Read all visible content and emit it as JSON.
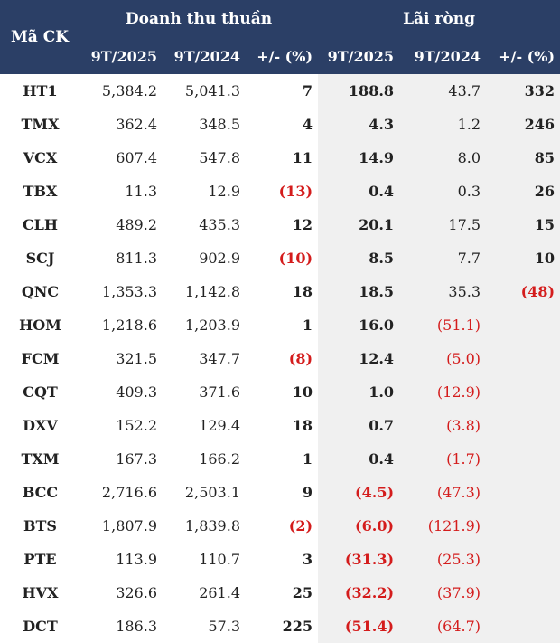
{
  "colors": {
    "header_bg": "#2b3f66",
    "header_text": "#ffffff",
    "negative": "#d41c1c",
    "shade": "#f0f0f0"
  },
  "header": {
    "ticker": "Mã CK",
    "revenue_group": "Doanh thu thuần",
    "profit_group": "Lãi ròng",
    "rev_2025": "9T/2025",
    "rev_2024": "9T/2024",
    "rev_change": "+/- (%)",
    "np_2025": "9T/2025",
    "np_2024": "9T/2024",
    "np_change": "+/- (%)"
  },
  "rows": [
    {
      "ticker": "HT1",
      "rev_2025": "5,384.2",
      "rev_2024": "5,041.3",
      "rev_change": "7",
      "np_2025": "188.8",
      "np_2024": "43.7",
      "np_change": "332"
    },
    {
      "ticker": "TMX",
      "rev_2025": "362.4",
      "rev_2024": "348.5",
      "rev_change": "4",
      "np_2025": "4.3",
      "np_2024": "1.2",
      "np_change": "246"
    },
    {
      "ticker": "VCX",
      "rev_2025": "607.4",
      "rev_2024": "547.8",
      "rev_change": "11",
      "np_2025": "14.9",
      "np_2024": "8.0",
      "np_change": "85"
    },
    {
      "ticker": "TBX",
      "rev_2025": "11.3",
      "rev_2024": "12.9",
      "rev_change": "(13)",
      "np_2025": "0.4",
      "np_2024": "0.3",
      "np_change": "26"
    },
    {
      "ticker": "CLH",
      "rev_2025": "489.2",
      "rev_2024": "435.3",
      "rev_change": "12",
      "np_2025": "20.1",
      "np_2024": "17.5",
      "np_change": "15"
    },
    {
      "ticker": "SCJ",
      "rev_2025": "811.3",
      "rev_2024": "902.9",
      "rev_change": "(10)",
      "np_2025": "8.5",
      "np_2024": "7.7",
      "np_change": "10"
    },
    {
      "ticker": "QNC",
      "rev_2025": "1,353.3",
      "rev_2024": "1,142.8",
      "rev_change": "18",
      "np_2025": "18.5",
      "np_2024": "35.3",
      "np_change": "(48)"
    },
    {
      "ticker": "HOM",
      "rev_2025": "1,218.6",
      "rev_2024": "1,203.9",
      "rev_change": "1",
      "np_2025": "16.0",
      "np_2024": "(51.1)",
      "np_change": ""
    },
    {
      "ticker": "FCM",
      "rev_2025": "321.5",
      "rev_2024": "347.7",
      "rev_change": "(8)",
      "np_2025": "12.4",
      "np_2024": "(5.0)",
      "np_change": ""
    },
    {
      "ticker": "CQT",
      "rev_2025": "409.3",
      "rev_2024": "371.6",
      "rev_change": "10",
      "np_2025": "1.0",
      "np_2024": "(12.9)",
      "np_change": ""
    },
    {
      "ticker": "DXV",
      "rev_2025": "152.2",
      "rev_2024": "129.4",
      "rev_change": "18",
      "np_2025": "0.7",
      "np_2024": "(3.8)",
      "np_change": ""
    },
    {
      "ticker": "TXM",
      "rev_2025": "167.3",
      "rev_2024": "166.2",
      "rev_change": "1",
      "np_2025": "0.4",
      "np_2024": "(1.7)",
      "np_change": ""
    },
    {
      "ticker": "BCC",
      "rev_2025": "2,716.6",
      "rev_2024": "2,503.1",
      "rev_change": "9",
      "np_2025": "(4.5)",
      "np_2024": "(47.3)",
      "np_change": ""
    },
    {
      "ticker": "BTS",
      "rev_2025": "1,807.9",
      "rev_2024": "1,839.8",
      "rev_change": "(2)",
      "np_2025": "(6.0)",
      "np_2024": "(121.9)",
      "np_change": ""
    },
    {
      "ticker": "PTE",
      "rev_2025": "113.9",
      "rev_2024": "110.7",
      "rev_change": "3",
      "np_2025": "(31.3)",
      "np_2024": "(25.3)",
      "np_change": ""
    },
    {
      "ticker": "HVX",
      "rev_2025": "326.6",
      "rev_2024": "261.4",
      "rev_change": "25",
      "np_2025": "(32.2)",
      "np_2024": "(37.9)",
      "np_change": ""
    },
    {
      "ticker": "DCT",
      "rev_2025": "186.3",
      "rev_2024": "57.3",
      "rev_change": "225",
      "np_2025": "(51.4)",
      "np_2024": "(64.7)",
      "np_change": ""
    }
  ]
}
